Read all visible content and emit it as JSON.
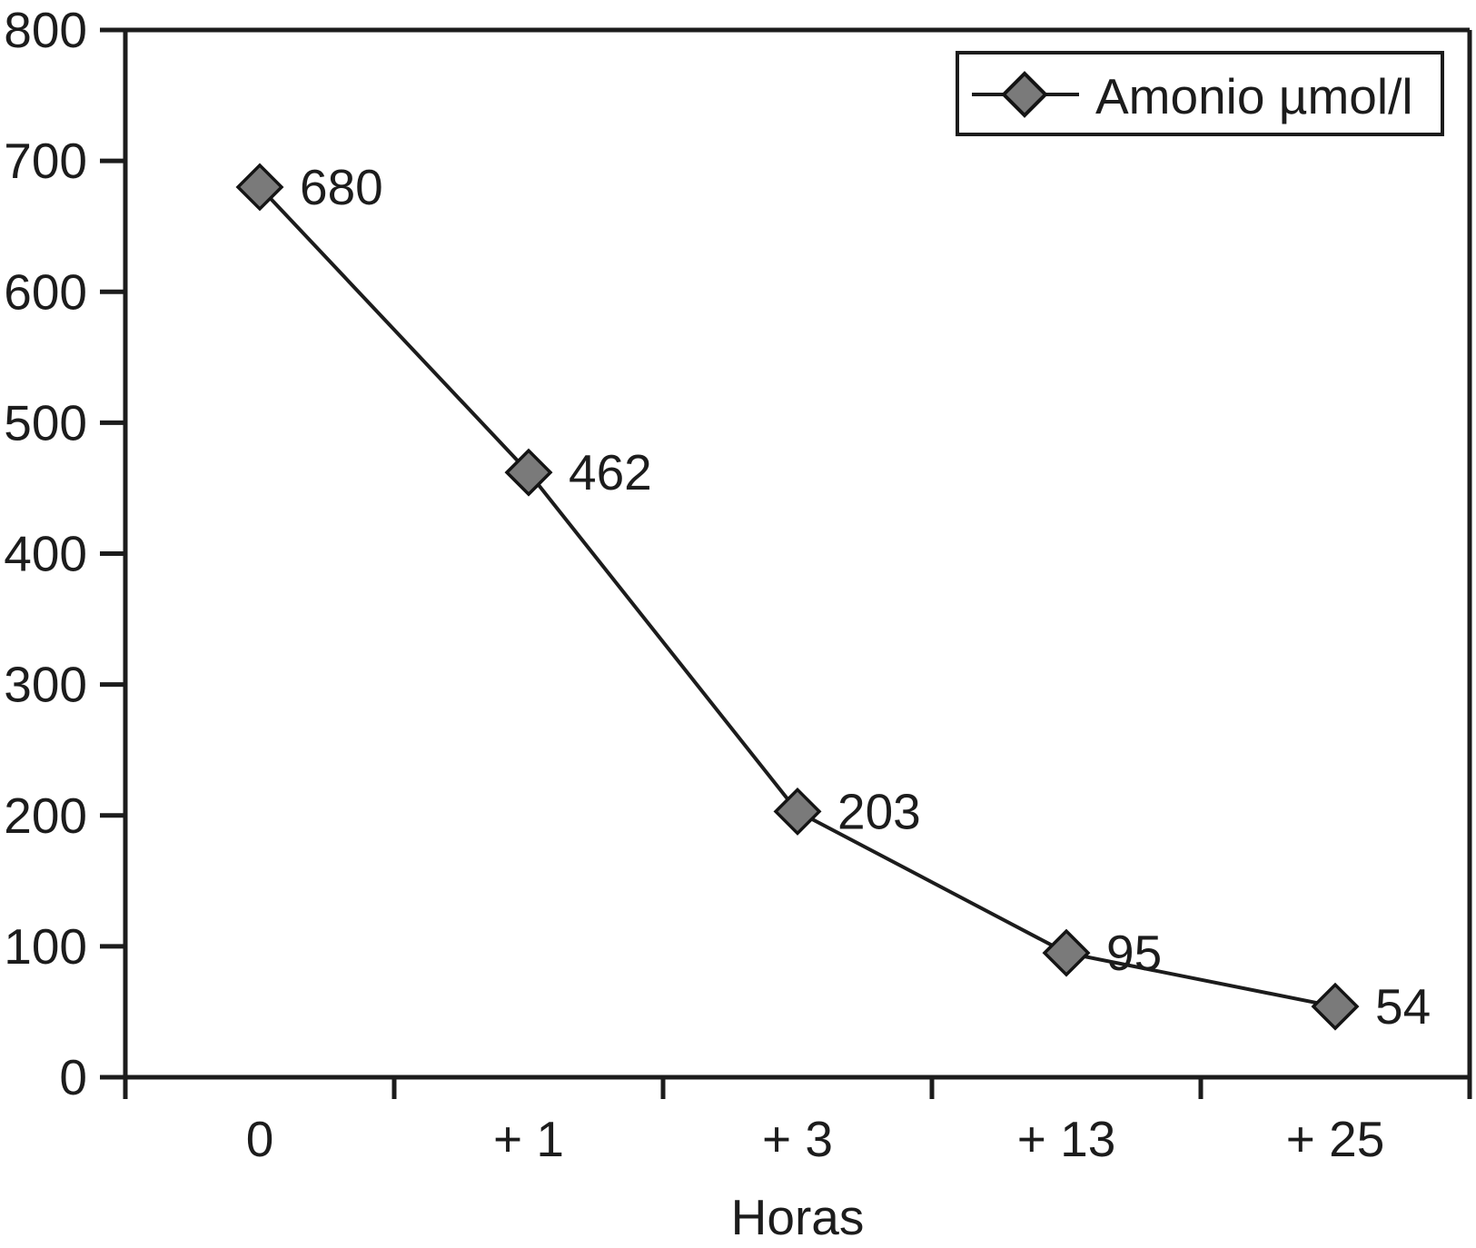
{
  "chart_data": {
    "type": "line",
    "title": "",
    "categories": [
      "0",
      "+ 1",
      "+ 3",
      "+ 13",
      "+ 25"
    ],
    "series": [
      {
        "name": "Amonio µmol/l",
        "values": [
          680,
          462,
          203,
          95,
          54
        ]
      }
    ],
    "data_labels": [
      "680",
      "462",
      "203",
      "95",
      "54"
    ],
    "xlabel": "Horas",
    "ylabel": "",
    "ylim": [
      0,
      800
    ],
    "ytick_interval": 100,
    "ytick_labels": [
      "0",
      "100",
      "200",
      "300",
      "400",
      "500",
      "600",
      "700",
      "800"
    ],
    "grid": false,
    "legend_position": "top-right",
    "marker": "diamond",
    "colors": {
      "axis": "#1c1c1c",
      "series_line": "#1c1c1c",
      "marker_fill": "#7a7a7a",
      "marker_stroke": "#141414",
      "text": "#1c1c1c",
      "background": "#ffffff",
      "legend_background": "#ffffff",
      "legend_border": "#1c1c1c"
    }
  }
}
